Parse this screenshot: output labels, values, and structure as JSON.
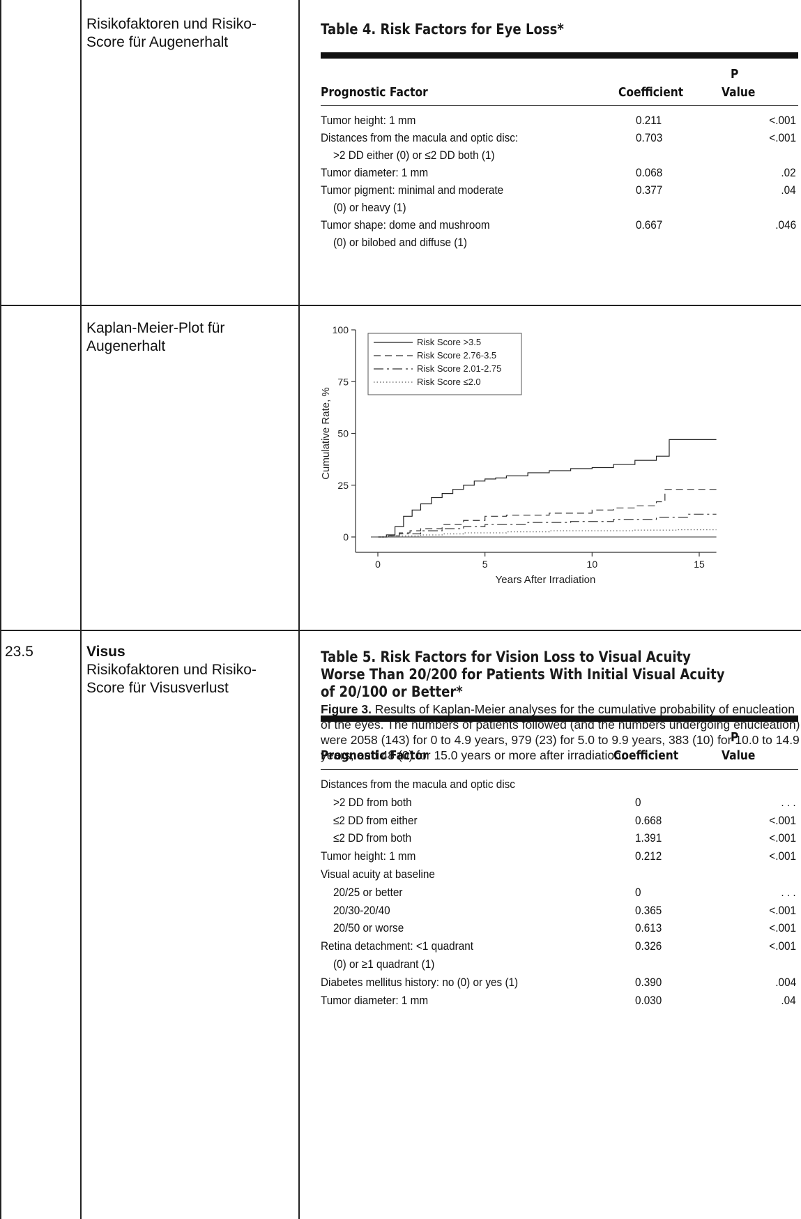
{
  "rows": [
    {
      "number": "",
      "label_bold": "",
      "label": "Risikofaktoren und Risiko-Score für Augenerhalt"
    },
    {
      "number": "",
      "label_bold": "",
      "label": "Kaplan-Meier-Plot für Augenerhalt"
    },
    {
      "number": "23.5",
      "label_bold": "Visus",
      "label": "Risikofaktoren und Risiko-Score für Visusverlust"
    }
  ],
  "table4": {
    "title": "Table 4. Risk Factors for Eye Loss*",
    "col_factor": "Prognostic Factor",
    "col_coef": "Coefficient",
    "col_p_top": "P",
    "col_p_bottom": "Value",
    "rows": [
      {
        "factor": [
          "Tumor height: 1 mm"
        ],
        "coef": "0.211",
        "p": "<.001"
      },
      {
        "factor": [
          "Distances from the macula and optic disc:",
          ">2 DD either (0) or ≤2 DD both (1)"
        ],
        "coef": "0.703",
        "p": "<.001"
      },
      {
        "factor": [
          "Tumor diameter: 1 mm"
        ],
        "coef": "0.068",
        "p": ".02"
      },
      {
        "factor": [
          "Tumor pigment: minimal and moderate",
          "(0) or heavy (1)"
        ],
        "coef": "0.377",
        "p": ".04"
      },
      {
        "factor": [
          "Tumor shape: dome and mushroom",
          "(0) or bilobed and diffuse (1)"
        ],
        "coef": "0.667",
        "p": ".046"
      }
    ]
  },
  "figure3": {
    "caption_label": "Figure 3.",
    "caption_text": " Results of Kaplan-Meier analyses for the cumulative probability of enucleation of the eyes. The numbers of patients followed (and the numbers undergoing enucleation) were 2058 (143) for 0 to 4.9 years, 979 (23) for 5.0 to 9.9 years, 383 (10) for 10.0 to 14.9 years, and 48 (0) for 15.0 years or more after irradiation."
  },
  "chart_data": {
    "type": "line",
    "title": "",
    "xlabel": "Years After Irradiation",
    "ylabel": "Cumulative Rate, %",
    "xlim": [
      0,
      16
    ],
    "ylim": [
      0,
      100
    ],
    "xticks": [
      0,
      5,
      10,
      15
    ],
    "yticks": [
      0,
      25,
      50,
      75,
      100
    ],
    "grid": false,
    "legend_position": "top-left",
    "series": [
      {
        "name": "Risk Score >3.5",
        "dash": "solid",
        "x": [
          0,
          0.4,
          0.8,
          1.2,
          1.6,
          2.0,
          2.5,
          3.0,
          3.5,
          4.0,
          4.5,
          5.0,
          5.5,
          6.0,
          7.0,
          8.0,
          9.0,
          10.0,
          11.0,
          12.0,
          13.0,
          13.6,
          14.5,
          15.8
        ],
        "y": [
          0,
          1,
          5,
          10,
          13,
          16,
          19,
          21,
          23,
          25,
          27,
          28,
          28.5,
          29.5,
          31,
          32,
          33,
          33.5,
          35,
          37,
          39,
          47,
          47,
          47
        ]
      },
      {
        "name": "Risk Score 2.76-3.5",
        "dash": "dashed",
        "x": [
          0,
          0.5,
          1.0,
          1.5,
          2.0,
          3.0,
          4.0,
          5.0,
          6.0,
          8.0,
          10.0,
          11.0,
          12.0,
          13.0,
          13.4,
          14.5,
          15.8
        ],
        "y": [
          0,
          0.5,
          2,
          3,
          4,
          6,
          8,
          10,
          10.5,
          11.5,
          13,
          14,
          15,
          17,
          23,
          23,
          23
        ]
      },
      {
        "name": "Risk Score 2.01-2.75",
        "dash": "dashdot",
        "x": [
          0,
          0.5,
          1.0,
          2.0,
          3.0,
          4.0,
          5.0,
          7.0,
          9.0,
          11.0,
          13.0,
          14.5,
          15.8
        ],
        "y": [
          0,
          0.5,
          1.5,
          3,
          4,
          5,
          6,
          7,
          7.5,
          8.5,
          9.5,
          11,
          11
        ]
      },
      {
        "name": "Risk Score ≤2.0",
        "dash": "dotted",
        "x": [
          0,
          1.0,
          2.0,
          3.0,
          4.0,
          6.0,
          8.0,
          10.0,
          12.0,
          14.0,
          15.8
        ],
        "y": [
          0,
          0.5,
          1,
          1.5,
          2,
          2.5,
          3,
          3,
          3.3,
          3.5,
          3.5
        ]
      }
    ]
  },
  "table5": {
    "title_lines": [
      "Table 5. Risk Factors for Vision Loss to Visual Acuity",
      "Worse Than 20/200 for Patients With Initial Visual Acuity",
      "of 20/100 or Better*"
    ],
    "col_factor": "Prognostic Factor",
    "col_coef": "Coefficient",
    "col_p_top": "P",
    "col_p_bottom": "Value",
    "rows": [
      {
        "factor": "Distances from the macula and optic disc",
        "indent": 0,
        "coef": "",
        "p": ""
      },
      {
        "factor": ">2 DD from both",
        "indent": 1,
        "coef": "0",
        "p": ". . ."
      },
      {
        "factor": "≤2 DD from either",
        "indent": 1,
        "coef": "0.668",
        "p": "<.001"
      },
      {
        "factor": "≤2 DD from both",
        "indent": 1,
        "coef": "1.391",
        "p": "<.001"
      },
      {
        "factor": "Tumor height: 1 mm",
        "indent": 0,
        "coef": "0.212",
        "p": "<.001"
      },
      {
        "factor": "Visual acuity at baseline",
        "indent": 0,
        "coef": "",
        "p": ""
      },
      {
        "factor": "20/25 or better",
        "indent": 1,
        "coef": "0",
        "p": ". . ."
      },
      {
        "factor": "20/30-20/40",
        "indent": 1,
        "coef": "0.365",
        "p": "<.001"
      },
      {
        "factor": "20/50 or worse",
        "indent": 1,
        "coef": "0.613",
        "p": "<.001"
      },
      {
        "factor": "Retina detachment: <1 quadrant",
        "indent": 0,
        "coef": "0.326",
        "p": "<.001"
      },
      {
        "factor": "(0) or ≥1 quadrant (1)",
        "indent": 1,
        "coef": "",
        "p": ""
      },
      {
        "factor": "Diabetes mellitus history: no (0) or yes (1)",
        "indent": 0,
        "coef": "0.390",
        "p": ".004"
      },
      {
        "factor": "Tumor diameter: 1 mm",
        "indent": 0,
        "coef": "0.030",
        "p": ".04"
      }
    ]
  }
}
